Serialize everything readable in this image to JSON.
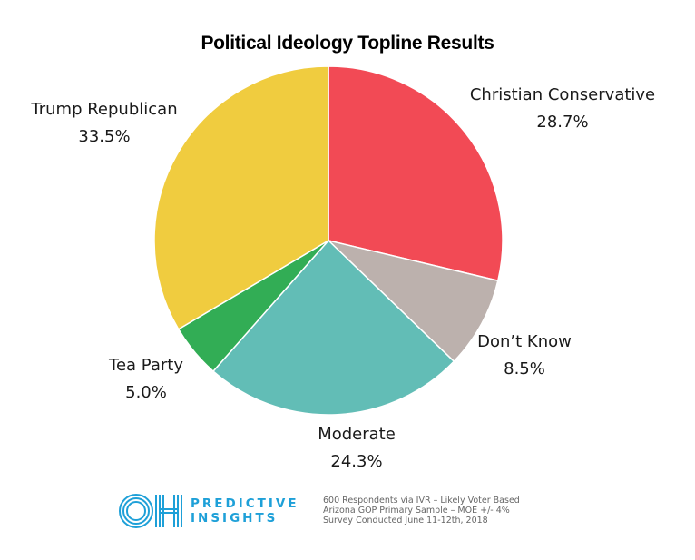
{
  "chart_data": {
    "type": "pie",
    "title": "Political Ideology Topline Results",
    "slices": [
      {
        "label": "Christian Conservative",
        "value": 28.7,
        "value_label": "28.7%",
        "color": "#f24a55"
      },
      {
        "label": "Don’t Know",
        "value": 8.5,
        "value_label": "8.5%",
        "color": "#bcb1ad"
      },
      {
        "label": "Moderate",
        "value": 24.3,
        "value_label": "24.3%",
        "color": "#62bdb6"
      },
      {
        "label": "Tea Party",
        "value": 5.0,
        "value_label": "5.0%",
        "color": "#32ad55"
      },
      {
        "label": "Trump Republican",
        "value": 33.5,
        "value_label": "33.5%",
        "color": "#f0cc3f"
      }
    ],
    "start_angle": "12 o'clock",
    "direction": "clockwise"
  },
  "footer": {
    "logo_mark": "OH",
    "brand_line1": "PREDICTIVE",
    "brand_line2": "INSIGHTS",
    "brand_color": "#1ea0d8",
    "notes": [
      "600 Respondents via IVR – Likely Voter Based",
      "Arizona GOP Primary Sample – MOE +/- 4%",
      "Survey Conducted June 11-12th, 2018"
    ]
  }
}
